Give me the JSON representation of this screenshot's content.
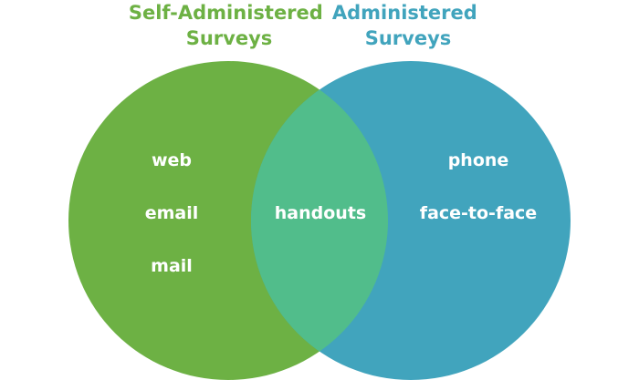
{
  "diagram": {
    "type": "venn",
    "colors": {
      "left": "#6db144",
      "right": "#41a4bd",
      "overlap": "#51bd8b",
      "item_text": "#ffffff"
    },
    "left_set": {
      "title_line1": "Self-Administered",
      "title_line2": "Surveys",
      "items": [
        "web",
        "email",
        "mail"
      ]
    },
    "right_set": {
      "title_line1": "Administered",
      "title_line2": "Surveys",
      "items": [
        "phone",
        "face-to-face"
      ]
    },
    "overlap": {
      "items": [
        "handouts"
      ]
    }
  }
}
